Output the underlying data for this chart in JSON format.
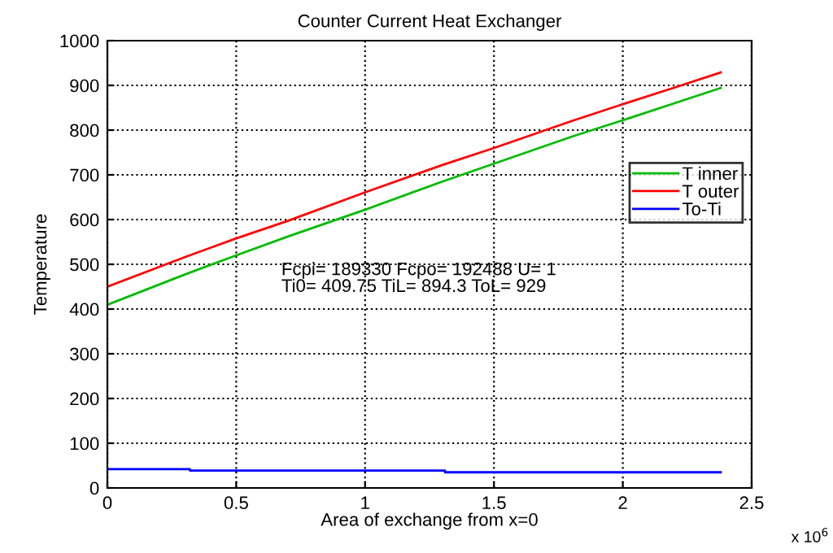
{
  "chart_data": {
    "type": "line",
    "title": "Counter Current Heat Exchanger",
    "xlabel": "Area of exchange from x=0",
    "ylabel": "Temperature",
    "annotations": [
      "Fcpi= 189330 Fcpo= 192488 U= 1\nTi0= 409.75 TiL= 894.3 ToL= 929",
      "x 10$^{6}$"
    ],
    "series": [
      {
        "name": "T inner",
        "color": "#00bb00",
        "x": [
          0,
          0.1,
          0.3,
          0.5,
          0.7,
          1.0,
          1.3,
          1.5,
          1.8,
          2.0,
          2.2,
          2.38
        ],
        "values": [
          409.75,
          432,
          477,
          520,
          562,
          622,
          685,
          725,
          785,
          822,
          860,
          894.3
        ]
      },
      {
        "name": "T outer",
        "color": "#ff0000",
        "x": [
          0,
          0.3,
          0.5,
          0.7,
          1.0,
          1.3,
          1.5,
          1.8,
          2.0,
          2.2,
          2.38
        ],
        "values": [
          450,
          516,
          558,
          597,
          661,
          722,
          760,
          820,
          858,
          895,
          929
        ]
      },
      {
        "name": "To-Ti",
        "color": "#0000ff",
        "x": [
          0,
          0.32,
          0.32,
          1.31,
          1.31,
          2.38
        ],
        "values": [
          42,
          42,
          39,
          39,
          35,
          35
        ]
      }
    ],
    "xlim": [
      0,
      2.5
    ],
    "xticks": [
      0,
      0.5,
      1,
      1.5,
      2,
      2.5
    ],
    "ylim": [
      0,
      1000
    ],
    "yticks": [
      0,
      100,
      200,
      300,
      400,
      500,
      600,
      700,
      800,
      900,
      1000
    ],
    "grid": true,
    "legend": "right",
    "line_style": "solid",
    "marker": "none"
  }
}
